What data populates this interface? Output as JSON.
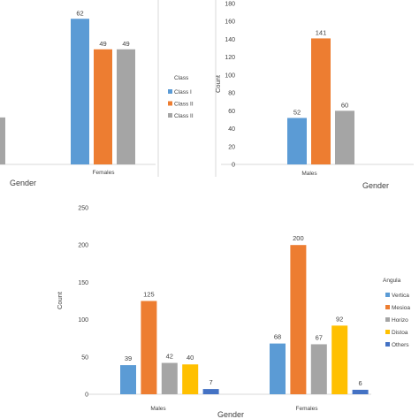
{
  "colors": {
    "axis": "#d9d9d9",
    "text": "#404040"
  },
  "chart_data": [
    {
      "type": "bar",
      "panel": "top-left (cropped)",
      "xlabel": "Gender",
      "ylabel": "",
      "ylim": [
        0,
        70
      ],
      "grid": false,
      "categories": [
        "Females"
      ],
      "series": [
        {
          "name": "Class I",
          "color": "#5b9bd5",
          "values": [
            62
          ]
        },
        {
          "name": "Class II",
          "color": "#ed7d31",
          "values": [
            49
          ]
        },
        {
          "name": "Class II",
          "color": "#a5a5a5",
          "values": [
            49
          ]
        }
      ],
      "partial_bars_left": [
        {
          "series": 2,
          "value": 20
        }
      ],
      "legend": {
        "title": "Class",
        "position": "right",
        "labels": [
          "Class I",
          "Class II",
          "Class II"
        ]
      }
    },
    {
      "type": "bar",
      "panel": "top-right",
      "xlabel": "Gender",
      "ylabel": "Count",
      "ylim": [
        0,
        180
      ],
      "yticks": [
        0,
        20,
        40,
        60,
        80,
        100,
        120,
        140,
        160,
        180
      ],
      "grid": false,
      "categories": [
        "Males"
      ],
      "series": [
        {
          "color": "#5b9bd5",
          "values": [
            52
          ]
        },
        {
          "color": "#ed7d31",
          "values": [
            141
          ]
        },
        {
          "color": "#a5a5a5",
          "values": [
            60
          ]
        }
      ]
    },
    {
      "type": "bar",
      "panel": "bottom",
      "xlabel": "Gender",
      "ylabel": "Count",
      "ylim": [
        0,
        250
      ],
      "yticks": [
        0,
        50,
        100,
        150,
        200,
        250
      ],
      "grid": false,
      "categories": [
        "Males",
        "Females"
      ],
      "series": [
        {
          "name": "Vertica",
          "color": "#5b9bd5",
          "values": [
            39,
            68
          ]
        },
        {
          "name": "Mesioa",
          "color": "#ed7d31",
          "values": [
            125,
            200
          ]
        },
        {
          "name": "Horizo",
          "color": "#a5a5a5",
          "values": [
            42,
            67
          ]
        },
        {
          "name": "Distoa",
          "color": "#ffc000",
          "values": [
            40,
            92
          ]
        },
        {
          "name": "Others",
          "color": "#4472c4",
          "values": [
            7,
            6
          ]
        }
      ],
      "legend": {
        "title": "Angula",
        "position": "right",
        "labels": [
          "Vertica",
          "Mesioa",
          "Horizo",
          "Distoa",
          "Others"
        ]
      }
    }
  ]
}
